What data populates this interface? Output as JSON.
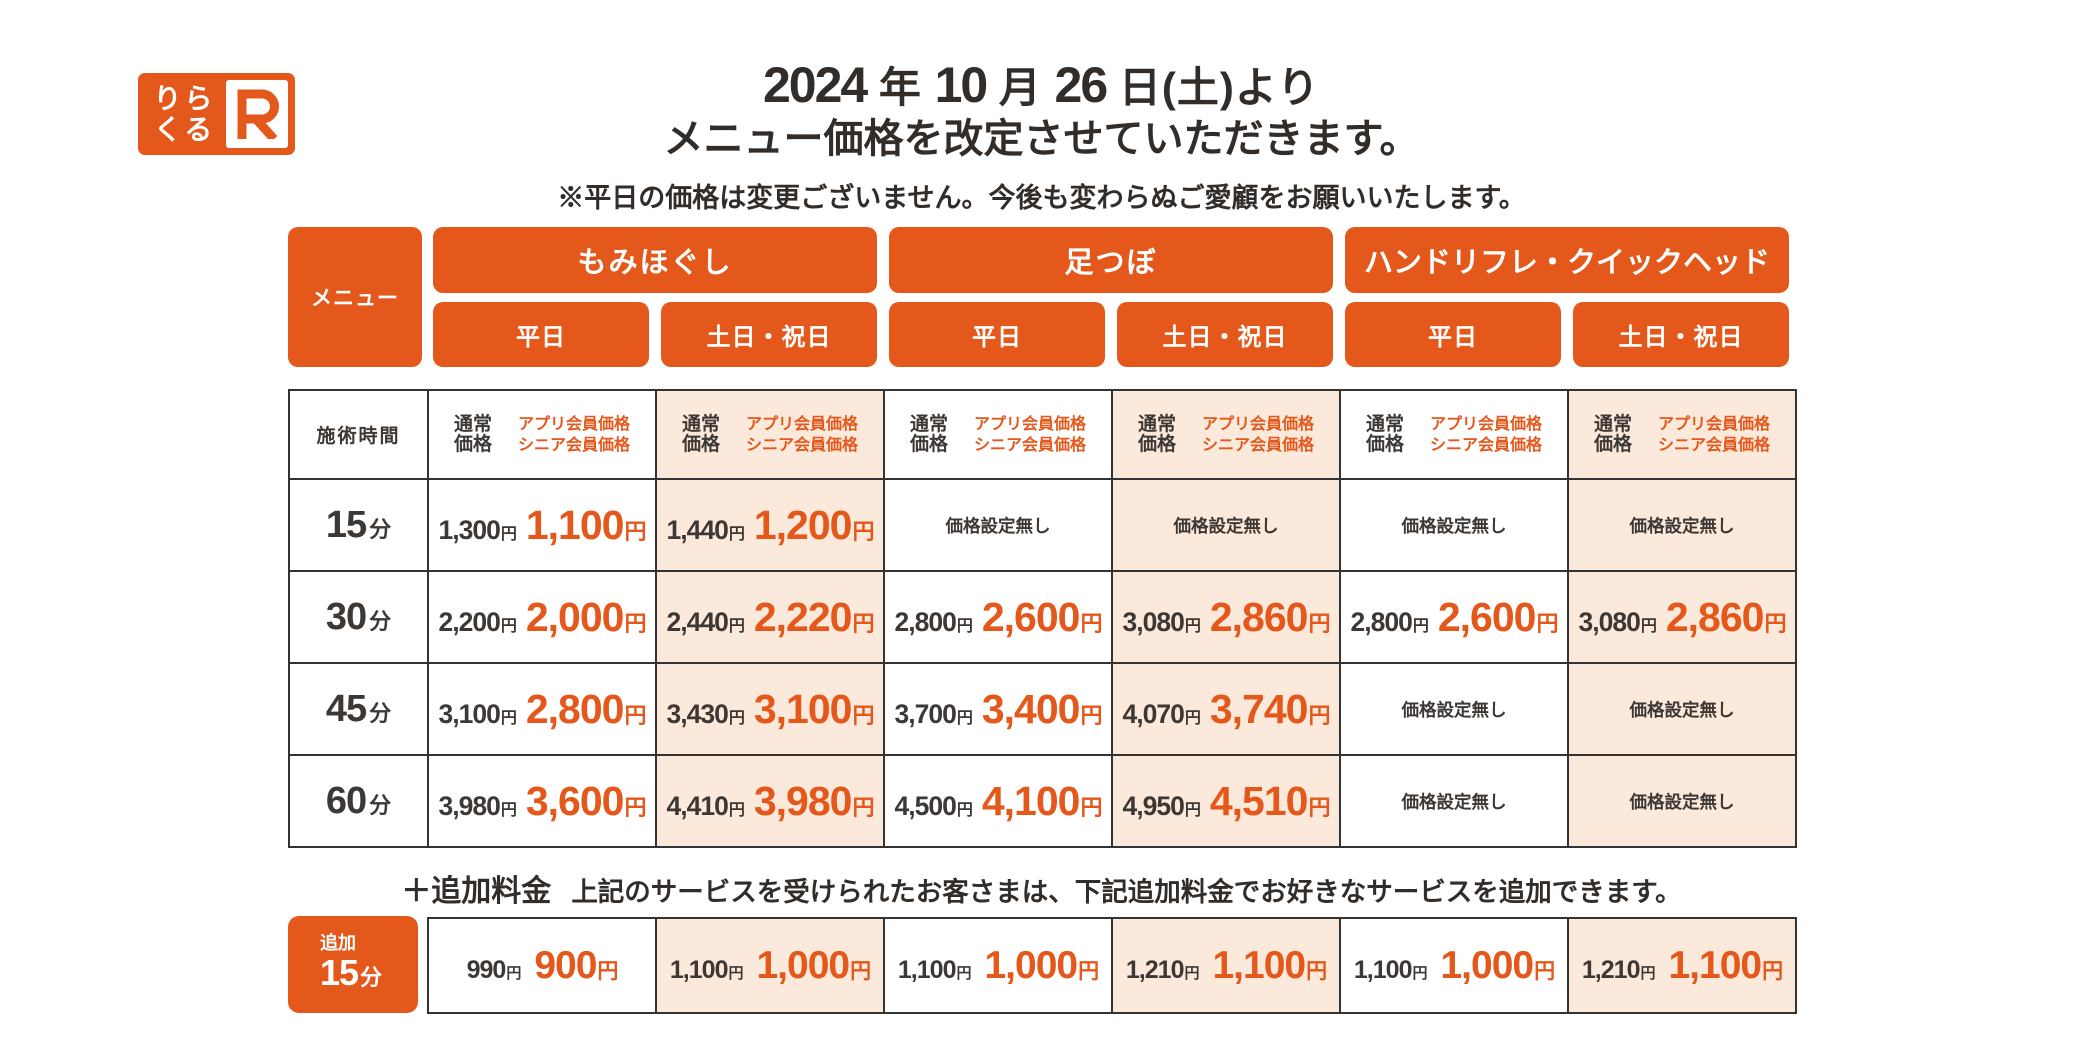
{
  "logo": {
    "top": "りら",
    "bottom": "くる",
    "r": "R"
  },
  "title": {
    "line1": "2024 年 10 月 26 日(土)より",
    "line2": "メニュー価格を改定させていただきます。",
    "note": "※平日の価格は変更ございません。今後も変わらぬご愛顧をお願いいたします。"
  },
  "header": {
    "menu": "メニュー",
    "groups": [
      "もみほぐし",
      "足つぼ",
      "ハンドリフレ・クイックヘッド"
    ],
    "days": [
      "平日",
      "土日・祝日",
      "平日",
      "土日・祝日",
      "平日",
      "土日・祝日"
    ]
  },
  "table": {
    "time_header": "施術時間",
    "normal_header": "通常\n価格",
    "member_header": "アプリ会員価格\nシニア会員価格",
    "no_price": "価格設定無し",
    "yen": "円",
    "minute_unit": "分",
    "rows": [
      {
        "time": "15",
        "cells": [
          {
            "n": "1,300",
            "m": "1,100"
          },
          {
            "n": "1,440",
            "m": "1,200"
          },
          null,
          null,
          null,
          null
        ]
      },
      {
        "time": "30",
        "cells": [
          {
            "n": "2,200",
            "m": "2,000"
          },
          {
            "n": "2,440",
            "m": "2,220"
          },
          {
            "n": "2,800",
            "m": "2,600"
          },
          {
            "n": "3,080",
            "m": "2,860"
          },
          {
            "n": "2,800",
            "m": "2,600"
          },
          {
            "n": "3,080",
            "m": "2,860"
          }
        ]
      },
      {
        "time": "45",
        "cells": [
          {
            "n": "3,100",
            "m": "2,800"
          },
          {
            "n": "3,430",
            "m": "3,100"
          },
          {
            "n": "3,700",
            "m": "3,400"
          },
          {
            "n": "4,070",
            "m": "3,740"
          },
          null,
          null
        ]
      },
      {
        "time": "60",
        "cells": [
          {
            "n": "3,980",
            "m": "3,600"
          },
          {
            "n": "4,410",
            "m": "3,980"
          },
          {
            "n": "4,500",
            "m": "4,100"
          },
          {
            "n": "4,950",
            "m": "4,510"
          },
          null,
          null
        ]
      }
    ]
  },
  "addon": {
    "note_title": "＋追加料金",
    "note_desc": "上記のサービスを受けられたお客さまは、下記追加料金でお好きなサービスを追加できます。",
    "box_top": "追加",
    "box_num": "15",
    "box_unit": "分",
    "cells": [
      {
        "n": "990",
        "m": "900"
      },
      {
        "n": "1,100",
        "m": "1,000"
      },
      {
        "n": "1,100",
        "m": "1,000"
      },
      {
        "n": "1,210",
        "m": "1,100"
      },
      {
        "n": "1,100",
        "m": "1,000"
      },
      {
        "n": "1,210",
        "m": "1,100"
      }
    ]
  },
  "colors": {
    "orange": "#e4581b",
    "peach": "#fbe9dc",
    "dark": "#3e3835"
  }
}
